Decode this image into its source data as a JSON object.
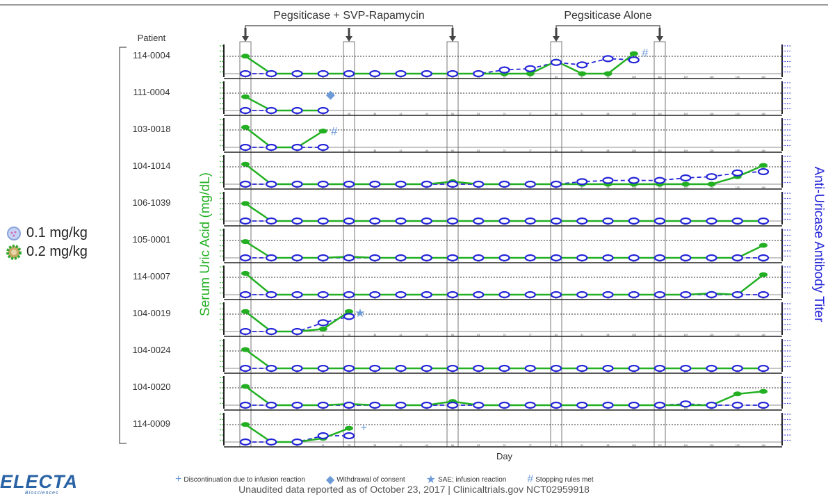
{
  "header": {
    "phase1_label": "Pegsiticase + SVP-Rapamycin",
    "phase2_label": "Pegsiticase Alone"
  },
  "patient_header": "Patient",
  "dose_legend": [
    {
      "label": "0.1 mg/kg",
      "icon": "light-blue-circle-icon",
      "color": "#9ab3e8"
    },
    {
      "label": "0.2 mg/kg",
      "icon": "green-ring-icon",
      "color": "#2eaa2e"
    }
  ],
  "symbols_legend": [
    {
      "glyph": "+",
      "label": "Discontinuation due to infusion reaction",
      "icon": "plus-icon"
    },
    {
      "glyph": "◆",
      "label": "Withdrawal of consent",
      "icon": "diamond-icon"
    },
    {
      "glyph": "★",
      "label": "SAE; infusion reaction",
      "icon": "star-icon"
    },
    {
      "glyph": "#",
      "label": "Stopping rules met",
      "icon": "hash-icon"
    }
  ],
  "footnote": "Unaudited data reported as of October 23, 2017 | Clinicaltrials.gov NCT02959918",
  "logo": {
    "text": "ELECTA",
    "sub": "Biosciences"
  },
  "colors": {
    "uric_acid": "#22b022",
    "antibody": "#2424d8",
    "annotation": "#6d9bd8"
  },
  "chart_data": {
    "type": "line",
    "title": "",
    "xlabel": "Day",
    "ylabel_left": "Serum Uric Acid (mg/dL)",
    "ylabel_right": "Anti-Uricase Antibody Titer",
    "x": [
      0,
      7,
      14,
      21,
      28,
      35,
      42,
      49,
      56,
      63,
      70,
      77,
      84,
      91,
      98,
      105,
      112,
      119,
      126,
      133,
      140
    ],
    "x_tick_labels": [
      "0",
      "7",
      "14",
      "21",
      "28",
      "35",
      "42",
      "49",
      "56",
      "63",
      "70",
      "77",
      "84",
      "91",
      "98",
      "105",
      "112",
      "119",
      "126",
      "133",
      "140"
    ],
    "dose_days_phase1": [
      0,
      28,
      56
    ],
    "dose_days_phase2": [
      84,
      112
    ],
    "patients": [
      {
        "id": "114-0004",
        "uric_acid": [
          0.7,
          0,
          0,
          0,
          0,
          0,
          0,
          0,
          0,
          0,
          0,
          0,
          0.5,
          0,
          0,
          0.8,
          null,
          null,
          null,
          null,
          null
        ],
        "antibody": [
          0,
          0,
          0,
          0,
          0,
          0,
          0,
          0,
          0,
          0,
          0.15,
          0.2,
          0.45,
          0.35,
          0.6,
          0.55,
          null,
          null,
          null,
          null,
          null
        ],
        "annotation": {
          "symbol": "#",
          "day": 108,
          "level": 0.85
        }
      },
      {
        "id": "111-0004",
        "uric_acid": [
          0.55,
          0,
          0,
          0,
          null,
          null,
          null,
          null,
          null,
          null,
          null,
          null,
          null,
          null,
          null,
          null,
          null,
          null,
          null,
          null,
          null
        ],
        "antibody": [
          0,
          0,
          0,
          0,
          null,
          null,
          null,
          null,
          null,
          null,
          null,
          null,
          null,
          null,
          null,
          null,
          null,
          null,
          null,
          null,
          null
        ],
        "annotation": {
          "symbol": "◆",
          "day": 23,
          "level": 0.65
        }
      },
      {
        "id": "103-0018",
        "uric_acid": [
          0.8,
          0,
          0,
          0.65,
          null,
          null,
          null,
          null,
          null,
          null,
          null,
          null,
          null,
          null,
          null,
          null,
          null,
          null,
          null,
          null,
          null
        ],
        "antibody": [
          0,
          0,
          0,
          0,
          null,
          null,
          null,
          null,
          null,
          null,
          null,
          null,
          null,
          null,
          null,
          null,
          null,
          null,
          null,
          null,
          null
        ],
        "annotation": {
          "symbol": "#",
          "day": 24,
          "level": 0.65
        }
      },
      {
        "id": "104-1014",
        "uric_acid": [
          0.8,
          0,
          0,
          0,
          0,
          0,
          0,
          0,
          0.1,
          0,
          0,
          0,
          0,
          0,
          0,
          0,
          0,
          0,
          0,
          0.3,
          0.75
        ],
        "antibody": [
          0,
          0,
          0,
          0,
          0,
          0,
          0,
          0,
          0,
          0,
          0,
          0,
          0,
          0.1,
          0.15,
          0.15,
          0.15,
          0.25,
          0.3,
          0.45,
          0.5
        ],
        "annotation": null
      },
      {
        "id": "106-1039",
        "uric_acid": [
          0.7,
          0,
          0,
          0,
          0,
          0,
          0,
          0,
          0,
          0,
          0,
          0,
          0,
          0,
          0,
          0,
          0,
          0,
          0,
          0,
          0
        ],
        "antibody": [
          0,
          0,
          0,
          0,
          0,
          0,
          0,
          0,
          0,
          0,
          0,
          0,
          0,
          0,
          0,
          0,
          0,
          0,
          0,
          0,
          0
        ],
        "annotation": null
      },
      {
        "id": "105-0001",
        "uric_acid": [
          0.65,
          0,
          0,
          0,
          0.05,
          0,
          0,
          0,
          0,
          0,
          0,
          0,
          0,
          0,
          0,
          0,
          0,
          0,
          0,
          0,
          0.5
        ],
        "antibody": [
          0,
          0,
          0,
          0,
          0,
          0,
          0,
          0,
          0,
          0,
          0,
          0,
          0,
          0,
          0,
          0,
          0,
          0,
          0,
          0,
          0
        ],
        "annotation": null
      },
      {
        "id": "114-0007",
        "uric_acid": [
          0.85,
          0,
          0,
          0,
          0,
          0,
          0,
          0,
          0,
          0,
          0,
          0,
          0,
          0,
          0,
          0,
          0,
          0,
          0.05,
          0,
          0.8
        ],
        "antibody": [
          0,
          0,
          0,
          0,
          0,
          0,
          0,
          0,
          0,
          0,
          0,
          0,
          0,
          0,
          0,
          0,
          0,
          0,
          0,
          0,
          0
        ],
        "annotation": null
      },
      {
        "id": "104-0019",
        "uric_acid": [
          0.8,
          0,
          0,
          0.1,
          0.8,
          null,
          null,
          null,
          null,
          null,
          null,
          null,
          null,
          null,
          null,
          null,
          null,
          null,
          null,
          null,
          null
        ],
        "antibody": [
          0,
          0,
          0,
          0.35,
          0.6,
          null,
          null,
          null,
          null,
          null,
          null,
          null,
          null,
          null,
          null,
          null,
          null,
          null,
          null,
          null,
          null
        ],
        "annotation": {
          "symbol": "★",
          "day": 31,
          "level": 0.75
        }
      },
      {
        "id": "104-0024",
        "uric_acid": [
          0.75,
          0,
          0,
          0,
          0,
          0,
          0,
          0,
          0,
          0,
          0,
          0,
          0,
          0,
          0,
          0,
          0,
          0,
          0,
          0,
          0
        ],
        "antibody": [
          0,
          0,
          0,
          0,
          0,
          0,
          0,
          0,
          0,
          0,
          0,
          0,
          0,
          0,
          0,
          0,
          0,
          0,
          0,
          0,
          0
        ],
        "annotation": null
      },
      {
        "id": "104-0020",
        "uric_acid": [
          0.75,
          0,
          0,
          0,
          0.05,
          0,
          0,
          0,
          0.15,
          0,
          0,
          0,
          0,
          0,
          0,
          0,
          0,
          0,
          0,
          0.45,
          0.55
        ],
        "antibody": [
          0,
          0,
          0,
          0,
          0,
          0,
          0,
          0,
          0,
          0,
          0,
          0,
          0,
          0,
          0,
          0,
          0,
          0.05,
          0,
          0,
          0
        ],
        "annotation": null
      },
      {
        "id": "114-0009",
        "uric_acid": [
          0.7,
          0,
          0,
          0.15,
          0.55,
          null,
          null,
          null,
          null,
          null,
          null,
          null,
          null,
          null,
          null,
          null,
          null,
          null,
          null,
          null,
          null
        ],
        "antibody": [
          0,
          0,
          0,
          0.25,
          0.25,
          null,
          null,
          null,
          null,
          null,
          null,
          null,
          null,
          null,
          null,
          null,
          null,
          null,
          null,
          null,
          null
        ],
        "annotation": {
          "symbol": "+",
          "day": 32,
          "level": 0.6
        }
      }
    ]
  }
}
